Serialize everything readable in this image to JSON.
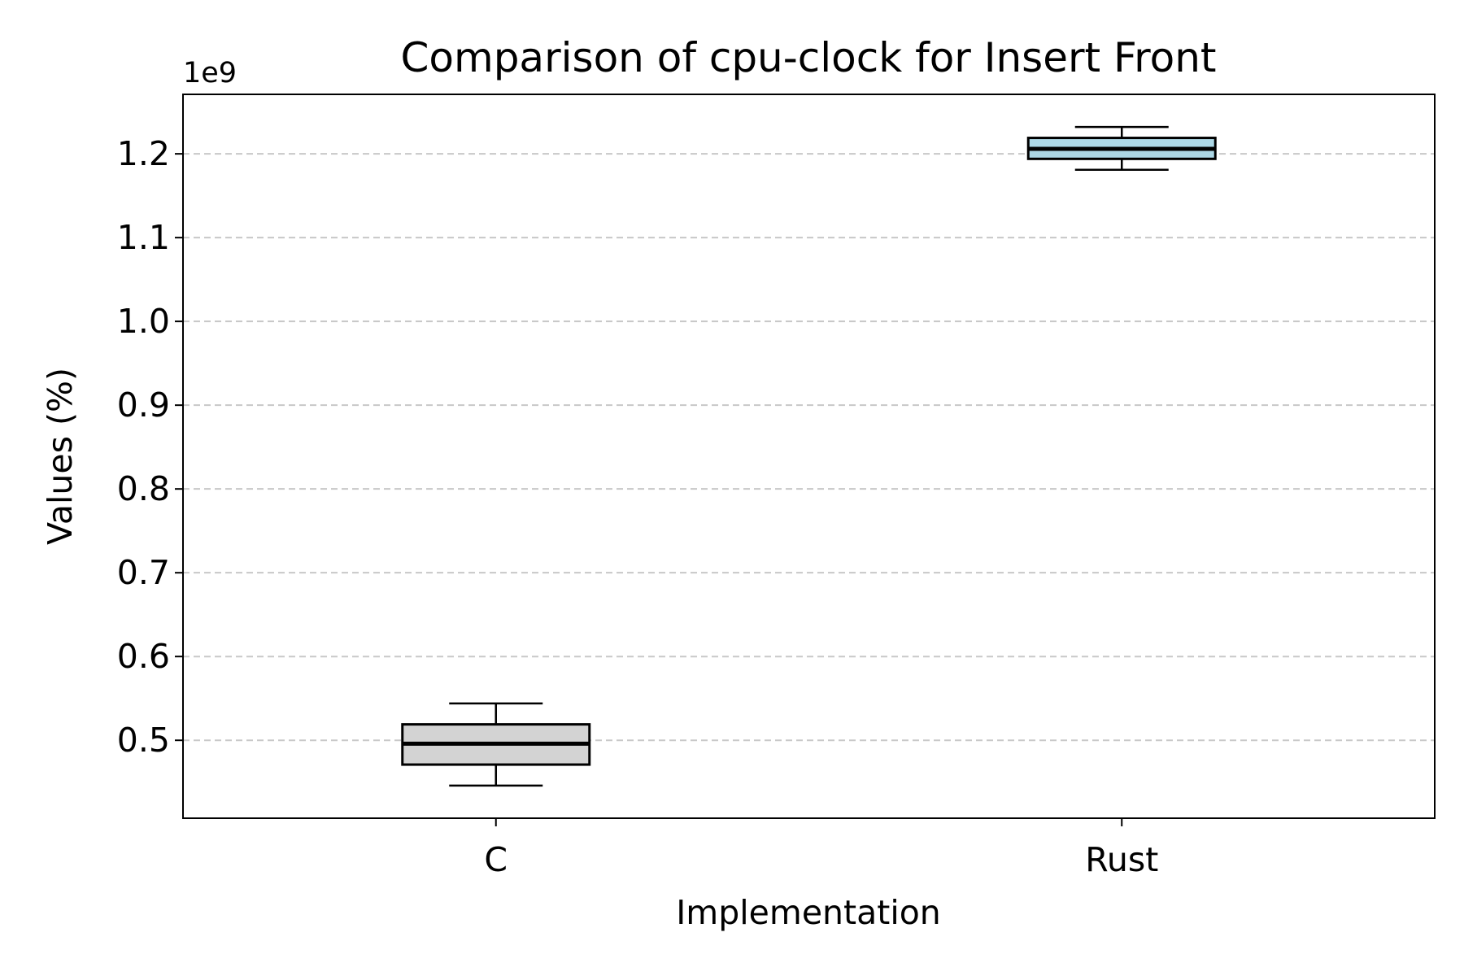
{
  "chart_data": {
    "type": "box",
    "title": "Comparison of cpu-clock for Insert Front",
    "xlabel": "Implementation",
    "ylabel": "Values (%)",
    "y_offset_label": "1e9",
    "y_scale": 1000000000,
    "ylim": [
      0.407,
      1.271
    ],
    "y_ticks": [
      0.5,
      0.6,
      0.7,
      0.8,
      0.9,
      1.0,
      1.1,
      1.2
    ],
    "y_tick_labels": [
      "0.5",
      "0.6",
      "0.7",
      "0.8",
      "0.9",
      "1.0",
      "1.1",
      "1.2"
    ],
    "grid": "y-dashed",
    "categories": [
      "C",
      "Rust"
    ],
    "boxes": [
      {
        "label": "C",
        "whisker_low": 0.446,
        "q1": 0.471,
        "median": 0.496,
        "q3": 0.519,
        "whisker_high": 0.544,
        "fill": "#d3d3d3"
      },
      {
        "label": "Rust",
        "whisker_low": 1.181,
        "q1": 1.194,
        "median": 1.206,
        "q3": 1.219,
        "whisker_high": 1.232,
        "fill": "#add8e6"
      }
    ]
  }
}
